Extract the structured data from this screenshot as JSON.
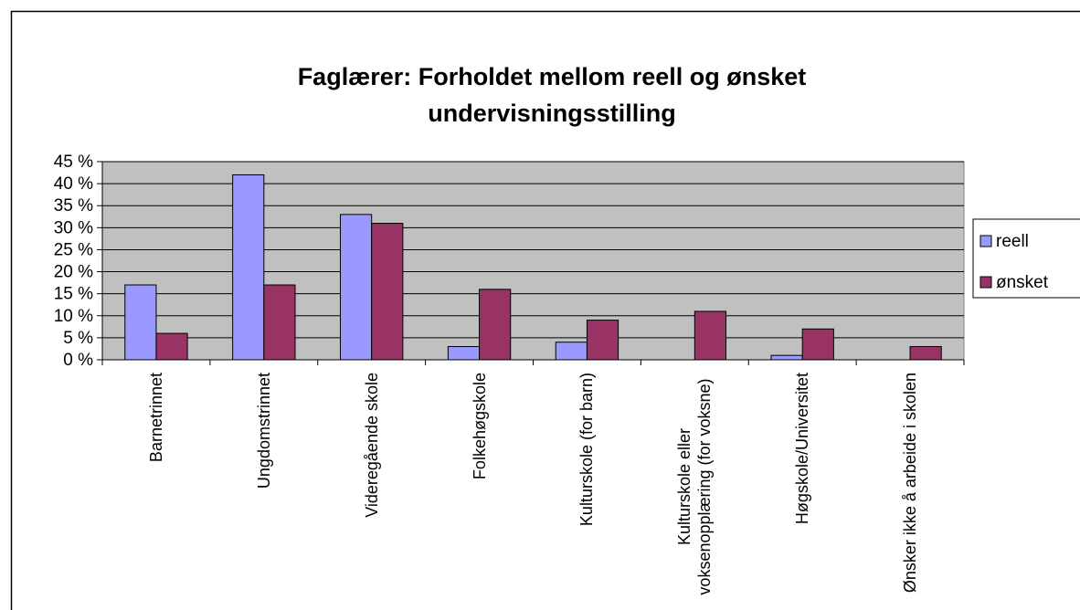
{
  "chart_data": {
    "type": "bar",
    "title": "Faglærer: Forholdet mellom reell og ønsket undervisningsstilling",
    "categories": [
      "Barnetrinnet",
      "Ungdomstrinnet",
      "Videregående skole",
      "Folkehøgskole",
      "Kulturskole (for barn)",
      "Kulturskole eller voksenopplæring (for voksne)",
      "Høgskole/Universitet",
      "Ønsker ikke å arbeide i skolen"
    ],
    "series": [
      {
        "name": "reell",
        "color": "#9999ff",
        "values": [
          17,
          42,
          33,
          3,
          4,
          0,
          1,
          0
        ]
      },
      {
        "name": "ønsket",
        "color": "#993366",
        "values": [
          6,
          17,
          31,
          16,
          9,
          11,
          7,
          3
        ]
      }
    ],
    "ylim": [
      0,
      45
    ],
    "yticks": [
      {
        "value": 0,
        "label": "0 %"
      },
      {
        "value": 5,
        "label": "5 %"
      },
      {
        "value": 10,
        "label": "10 %"
      },
      {
        "value": 15,
        "label": "15 %"
      },
      {
        "value": 20,
        "label": "20 %"
      },
      {
        "value": 25,
        "label": "25 %"
      },
      {
        "value": 30,
        "label": "30 %"
      },
      {
        "value": 35,
        "label": "35 %"
      },
      {
        "value": 40,
        "label": "40 %"
      },
      {
        "value": 45,
        "label": "45 %"
      }
    ],
    "grid": true,
    "legend": "right"
  }
}
